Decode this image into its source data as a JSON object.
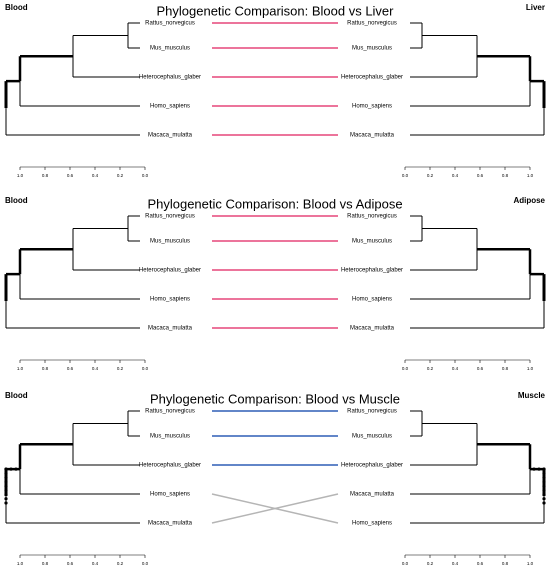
{
  "panels": [
    {
      "title": "Phylogenetic Comparison: Blood vs Liver",
      "left_label": "Blood",
      "right_label": "Liver",
      "left_taxa": [
        "Rattus_norvegicus",
        "Mus_musculus",
        "Heterocephalus_glaber",
        "Homo_sapiens",
        "Macaca_mulatta"
      ],
      "right_taxa": [
        "Rattus_norvegicus",
        "Mus_musculus",
        "Heterocephalus_glaber",
        "Homo_sapiens",
        "Macaca_mulatta"
      ],
      "left_axis": [
        "1.0",
        "0.8",
        "0.6",
        "0.4",
        "0.2",
        "0.0"
      ],
      "right_axis": [
        "0.0",
        "0.2",
        "0.4",
        "0.6",
        "0.8",
        "1.0"
      ],
      "link_colors": [
        "#e5467a",
        "#e5467a",
        "#e5467a",
        "#e5467a",
        "#e5467a"
      ]
    },
    {
      "title": "Phylogenetic Comparison: Blood vs Adipose",
      "left_label": "Blood",
      "right_label": "Adipose",
      "left_taxa": [
        "Rattus_norvegicus",
        "Mus_musculus",
        "Heterocephalus_glaber",
        "Homo_sapiens",
        "Macaca_mulatta"
      ],
      "right_taxa": [
        "Rattus_norvegicus",
        "Mus_musculus",
        "Heterocephalus_glaber",
        "Homo_sapiens",
        "Macaca_mulatta"
      ],
      "left_axis": [
        "1.0",
        "0.8",
        "0.6",
        "0.4",
        "0.2",
        "0.0"
      ],
      "right_axis": [
        "0.0",
        "0.2",
        "0.4",
        "0.6",
        "0.8",
        "1.0"
      ],
      "link_colors": [
        "#e5467a",
        "#e5467a",
        "#e5467a",
        "#e5467a",
        "#e5467a"
      ]
    },
    {
      "title": "Phylogenetic Comparison: Blood vs Muscle",
      "left_label": "Blood",
      "right_label": "Muscle",
      "left_taxa": [
        "Rattus_norvegicus",
        "Mus_musculus",
        "Heterocephalus_glaber",
        "Homo_sapiens",
        "Macaca_mulatta"
      ],
      "right_taxa": [
        "Rattus_norvegicus",
        "Mus_musculus",
        "Heterocephalus_glaber",
        "Macaca_mulatta",
        "Homo_sapiens"
      ],
      "left_axis": [
        "1.0",
        "0.8",
        "0.6",
        "0.4",
        "0.2",
        "0.0"
      ],
      "right_axis": [
        "0.0",
        "0.2",
        "0.4",
        "0.6",
        "0.8",
        "1.0"
      ],
      "link_colors": [
        "#2f5fb5",
        "#2f5fb5",
        "#2f5fb5",
        "#b5b5b5",
        "#b5b5b5"
      ]
    }
  ]
}
